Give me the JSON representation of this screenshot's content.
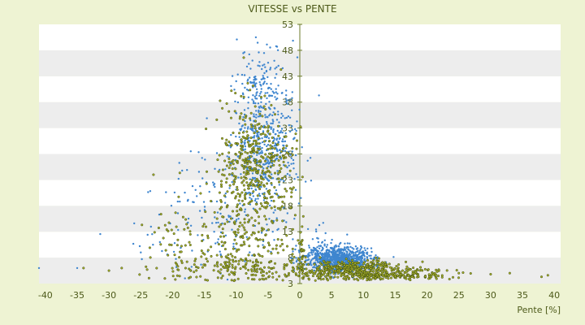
{
  "chart_data": {
    "type": "scatter",
    "title": "VITESSE vs PENTE",
    "xlabel": "Pente [%]",
    "ylabel": "",
    "xlim": [
      -41,
      41
    ],
    "ylim": [
      3,
      53
    ],
    "x_ticks": [
      -40,
      -35,
      -30,
      -25,
      -20,
      -15,
      -10,
      -5,
      0,
      5,
      10,
      15,
      20,
      25,
      30,
      35,
      40
    ],
    "y_ticks": [
      3,
      8,
      13,
      18,
      23,
      28,
      33,
      38,
      43,
      48,
      53
    ],
    "legend": "none",
    "grid": "horizontal alternating bands",
    "colors": {
      "background": "#eef3d3",
      "band_light": "#ffffff",
      "band_dark": "#ededed",
      "axis": "#6b7a2a",
      "series_blue": "#3f86cf",
      "series_olive": "#a8b02a",
      "olive_outline": "#3b4a10"
    },
    "series": [
      {
        "color": "#3f86cf",
        "clusters": [
          {
            "cx": -5.5,
            "cy": 30,
            "sx": 2.4,
            "sy": 7.5,
            "n": 520
          },
          {
            "cx": -6,
            "cy": 42,
            "sx": 1.6,
            "sy": 4,
            "n": 70
          },
          {
            "cx": -12,
            "cy": 18,
            "sx": 5,
            "sy": 6,
            "n": 120
          },
          {
            "cx": 6,
            "cy": 7.8,
            "sx": 2.6,
            "sy": 1.2,
            "n": 900
          },
          {
            "cx": 4,
            "cy": 11,
            "sx": 2,
            "sy": 2,
            "n": 30
          },
          {
            "cx": -20,
            "cy": 11,
            "sx": 4,
            "sy": 3,
            "n": 25
          }
        ],
        "extra_points": [
          [
            -41,
            6
          ],
          [
            -35,
            6
          ],
          [
            -25,
            9
          ],
          [
            -22,
            11
          ]
        ]
      },
      {
        "color": "#a8b02a",
        "clusters": [
          {
            "cx": -7,
            "cy": 25,
            "sx": 2.8,
            "sy": 6,
            "n": 420
          },
          {
            "cx": -8,
            "cy": 10,
            "sx": 4,
            "sy": 5,
            "n": 180
          },
          {
            "cx": -10,
            "cy": 6,
            "sx": 6,
            "sy": 1.2,
            "n": 120
          },
          {
            "cx": 12,
            "cy": 4.8,
            "sx": 6,
            "sy": 0.6,
            "n": 360
          },
          {
            "cx": 8,
            "cy": 6.2,
            "sx": 4,
            "sy": 0.8,
            "n": 220
          },
          {
            "cx": -18,
            "cy": 12,
            "sx": 4,
            "sy": 4,
            "n": 60
          },
          {
            "cx": 0.3,
            "cy": 8,
            "sx": 0.2,
            "sy": 2.5,
            "n": 40
          }
        ],
        "extra_points": [
          [
            -34,
            6
          ],
          [
            -30,
            5.5
          ],
          [
            -23,
            24
          ],
          [
            -28,
            6
          ],
          [
            25,
            5
          ],
          [
            30,
            4.8
          ],
          [
            33,
            5
          ],
          [
            38,
            4.3
          ],
          [
            39,
            4.6
          ]
        ]
      }
    ]
  }
}
